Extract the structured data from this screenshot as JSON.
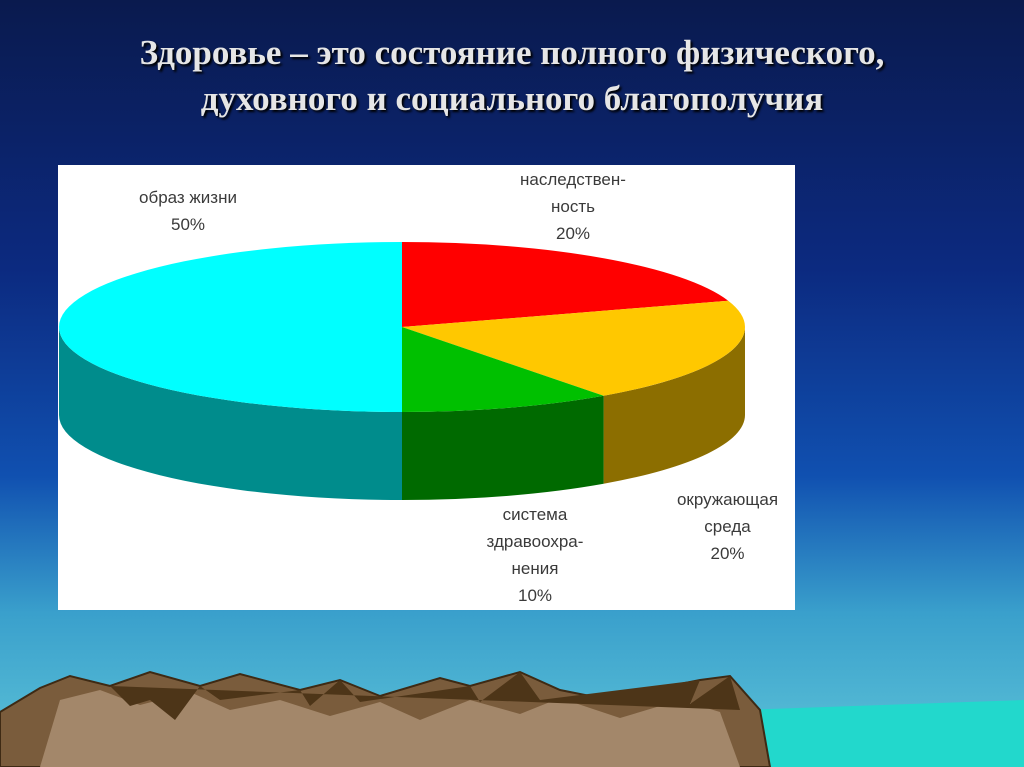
{
  "chart_data": {
    "type": "pie",
    "title": "Здоровье – это состояние полного физического, духовного и социального благополучия",
    "categories": [
      "наследствен-ность",
      "окружающая среда",
      "система здравоохра-нения",
      "образ жизни"
    ],
    "values": [
      20,
      20,
      10,
      50
    ],
    "value_labels": [
      "20%",
      "20%",
      "10%",
      "50%"
    ],
    "colors": [
      "#ff0000",
      "#ffc800",
      "#00c000",
      "#00ffff"
    ],
    "start_angle": -90,
    "direction": "clockwise"
  }
}
